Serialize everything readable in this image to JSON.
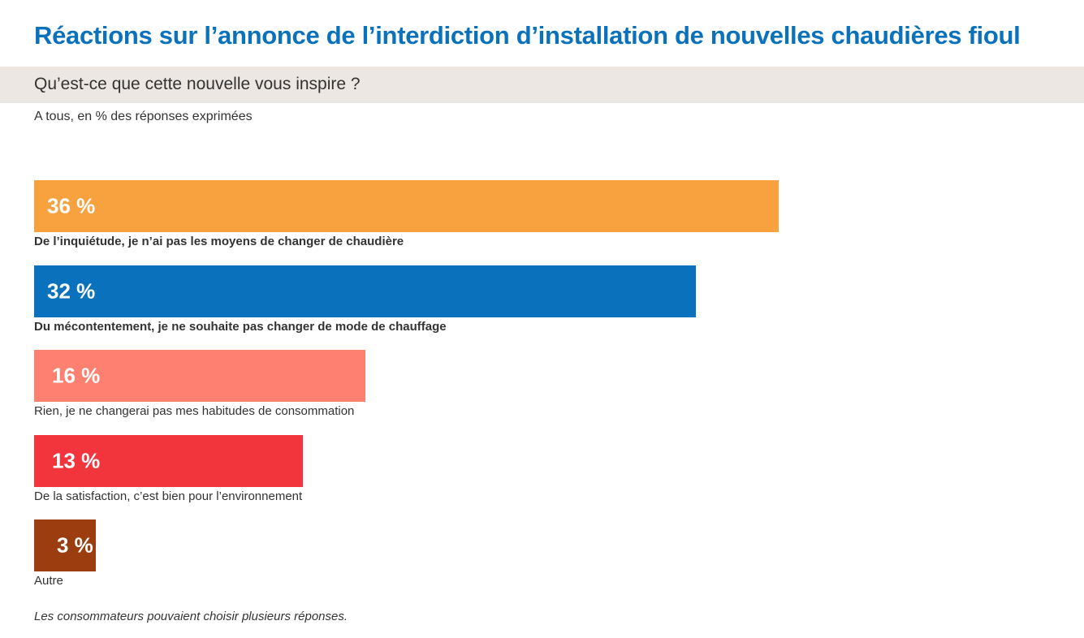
{
  "title": "Réactions sur l’annonce de l’interdiction d’installation de nouvelles chaudières fioul",
  "question": "Qu’est-ce que cette nouvelle vous inspire ?",
  "base": "A tous, en % des réponses exprimées",
  "note": "Les consommateurs pouvaient choisir plusieurs réponses.",
  "chart_data": {
    "type": "bar",
    "orientation": "horizontal",
    "unit": "%",
    "xlim": [
      0,
      40
    ],
    "grid": false,
    "legend": "none",
    "categories": [
      "De l’inquiétude, je n’ai pas les moyens de changer de chaudière",
      "Du mécontentement, je ne souhaite pas changer de mode de chauffage",
      "Rien, je ne changerai pas mes habitudes de consommation",
      "De la satisfaction, c’est bien pour l’environnement",
      "Autre"
    ],
    "values": [
      36,
      32,
      16,
      13,
      3
    ],
    "value_labels": [
      "36 %",
      "32 %",
      "16 %",
      "13 %",
      "3 %"
    ],
    "colors": [
      "#f8a13f",
      "#0a72bd",
      "#fd8070",
      "#f2353c",
      "#9c3d10"
    ],
    "label_bold": [
      true,
      true,
      false,
      false,
      false
    ]
  }
}
